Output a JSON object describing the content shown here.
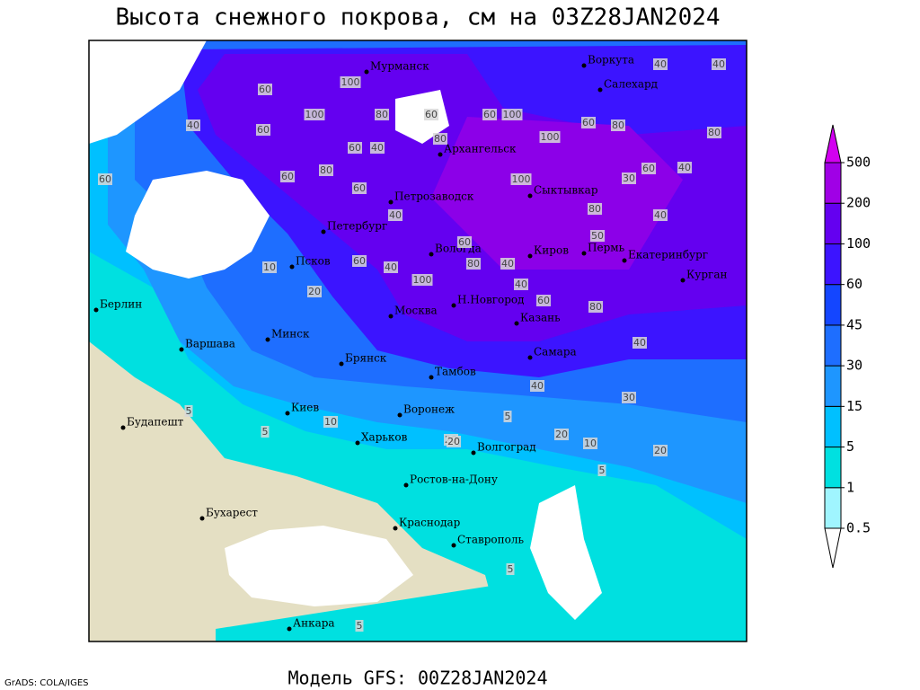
{
  "header": {
    "title": "Высота снежного покрова, см на 03Z28JAN2024"
  },
  "map": {
    "cities": [
      "Мурманск",
      "Воркута",
      "Салехард",
      "Архангельск",
      "Петрозаводск",
      "Сыктывкар",
      "Петербург",
      "Вологда",
      "Киров",
      "Пермь",
      "Екатеринбург",
      "Курган",
      "Псков",
      "Берлин",
      "Москва",
      "Н.Новгород",
      "Казань",
      "Минск",
      "Варшава",
      "Брянск",
      "Самара",
      "Тамбов",
      "Киев",
      "Воронеж",
      "Будапешт",
      "Харьков",
      "Волгоград",
      "Ростов-на-Дону",
      "Бухарест",
      "Краснодар",
      "Ставрополь",
      "Анкара"
    ],
    "contour_labels": [
      60,
      100,
      80,
      60,
      100,
      60,
      40,
      60,
      80,
      40,
      100,
      80,
      100,
      60,
      40,
      40,
      80,
      60,
      40,
      60,
      100,
      80,
      60,
      80,
      60,
      60,
      40,
      100,
      40,
      60,
      80,
      40,
      40,
      40,
      30,
      20,
      10,
      5,
      10,
      5,
      20,
      20,
      10,
      20,
      5,
      5,
      5,
      5,
      20,
      40,
      60,
      80,
      50,
      60,
      30,
      40
    ]
  },
  "legend": {
    "levels": [
      0.5,
      1,
      5,
      15,
      30,
      45,
      60,
      100,
      200,
      500
    ],
    "colors": [
      "#ffffff",
      "#a0f5ff",
      "#00e0e0",
      "#00c0ff",
      "#1e96ff",
      "#1e6eff",
      "#1446ff",
      "#3c14ff",
      "#6400f0",
      "#a000e6",
      "#d200f0"
    ]
  },
  "footer": {
    "model": "Модель GFS: 00Z28JAN2024",
    "credit": "GrADS: COLA/IGES"
  }
}
